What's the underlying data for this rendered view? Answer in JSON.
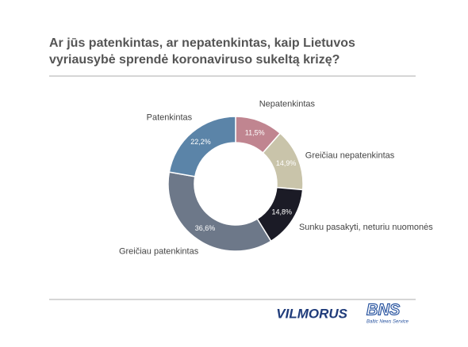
{
  "chart_data": {
    "type": "donut",
    "title": "Ar jūs patenkintas, ar nepatenkintas, kaip Lietuvos vyriausybė sprendė koronaviruso sukeltą krizę?",
    "categories": [
      "Nepatenkintas",
      "Greičiau nepatenkintas",
      "Sunku pasakyti, neturiu nuomonės",
      "Greičiau patenkintas",
      "Patenkintas"
    ],
    "values": [
      11.5,
      14.9,
      14.8,
      36.6,
      22.2
    ],
    "value_labels": [
      "11,5%",
      "14,9%",
      "14,8%",
      "36,6%",
      "22,2%"
    ],
    "colors": [
      "#c08590",
      "#c9c4aa",
      "#1b1b26",
      "#6d7889",
      "#5b84a8"
    ]
  },
  "logos": {
    "left": "VILMORUS",
    "right": "BNS",
    "right_sub": "Baltic News Service"
  }
}
